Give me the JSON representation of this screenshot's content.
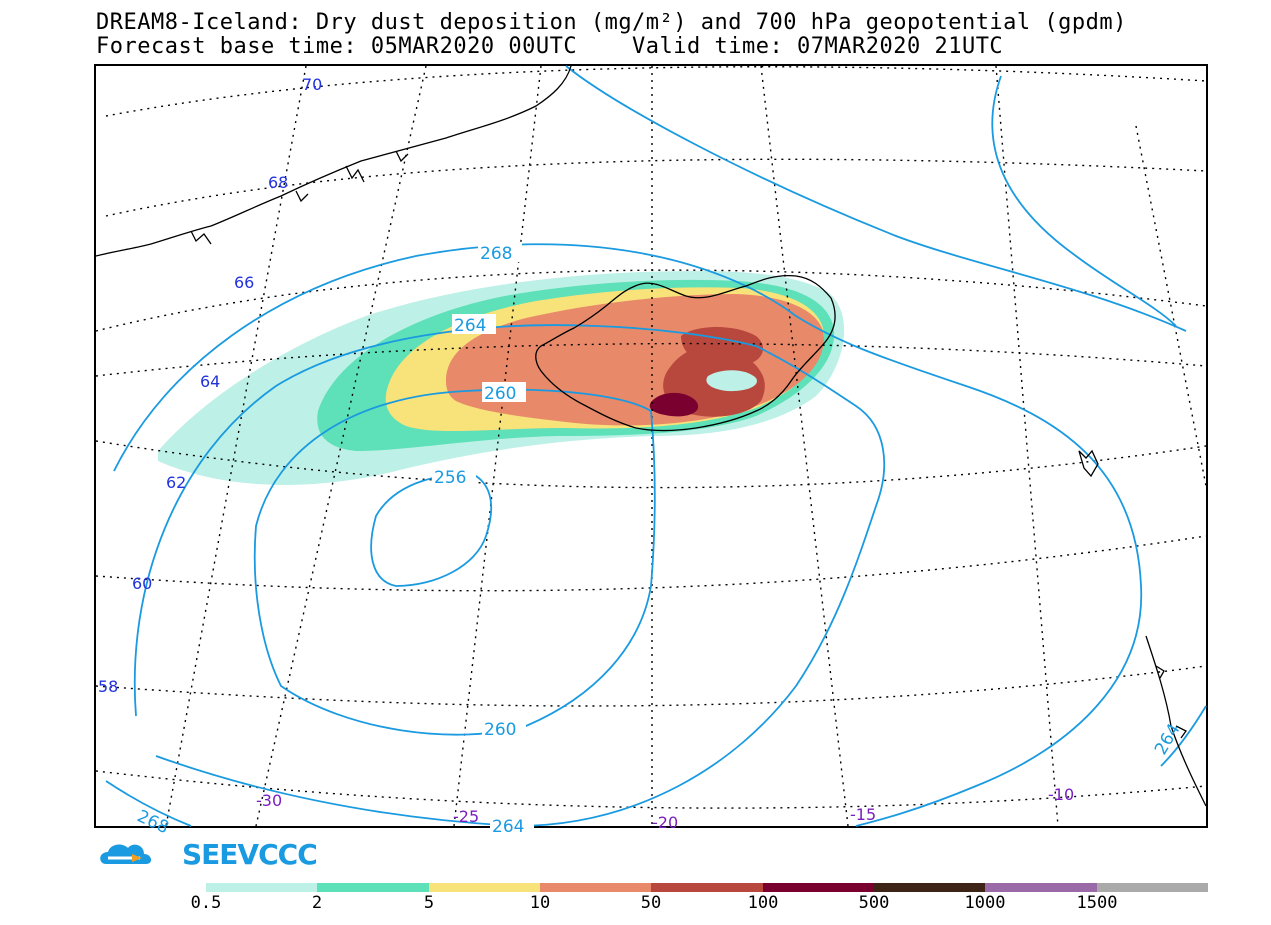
{
  "title": {
    "line1": "DREAM8-Iceland: Dry dust deposition (mg/m²) and 700 hPa geopotential (gpdm)",
    "line2": "Forecast base time: 05MAR2020 00UTC    Valid time: 07MAR2020 21UTC"
  },
  "map": {
    "lat_labels": [
      "70",
      "68",
      "66",
      "64",
      "62",
      "60",
      "58"
    ],
    "lon_labels": [
      "-30",
      "-25",
      "-20",
      "-15",
      "-10"
    ],
    "contour_labels": [
      "268",
      "264",
      "260",
      "256",
      "260",
      "268",
      "264",
      "264"
    ],
    "contour_color": "#1a9ae0",
    "graticule_color": "#000000",
    "coastline_color": "#000000"
  },
  "logo": {
    "text": "SEEVCCC",
    "icon": "cloud-arrow-icon",
    "color": "#1a9ae0",
    "arrow_color": "#f0a020"
  },
  "legend": {
    "colors": [
      "#bdf0e6",
      "#5ee0b8",
      "#f8e27a",
      "#e8896a",
      "#b8483e",
      "#7a0030",
      "#3d2416",
      "#9a6aa8",
      "#aaaaaa"
    ],
    "labels": [
      "0.5",
      "2",
      "5",
      "10",
      "50",
      "100",
      "500",
      "1000",
      "1500"
    ]
  }
}
